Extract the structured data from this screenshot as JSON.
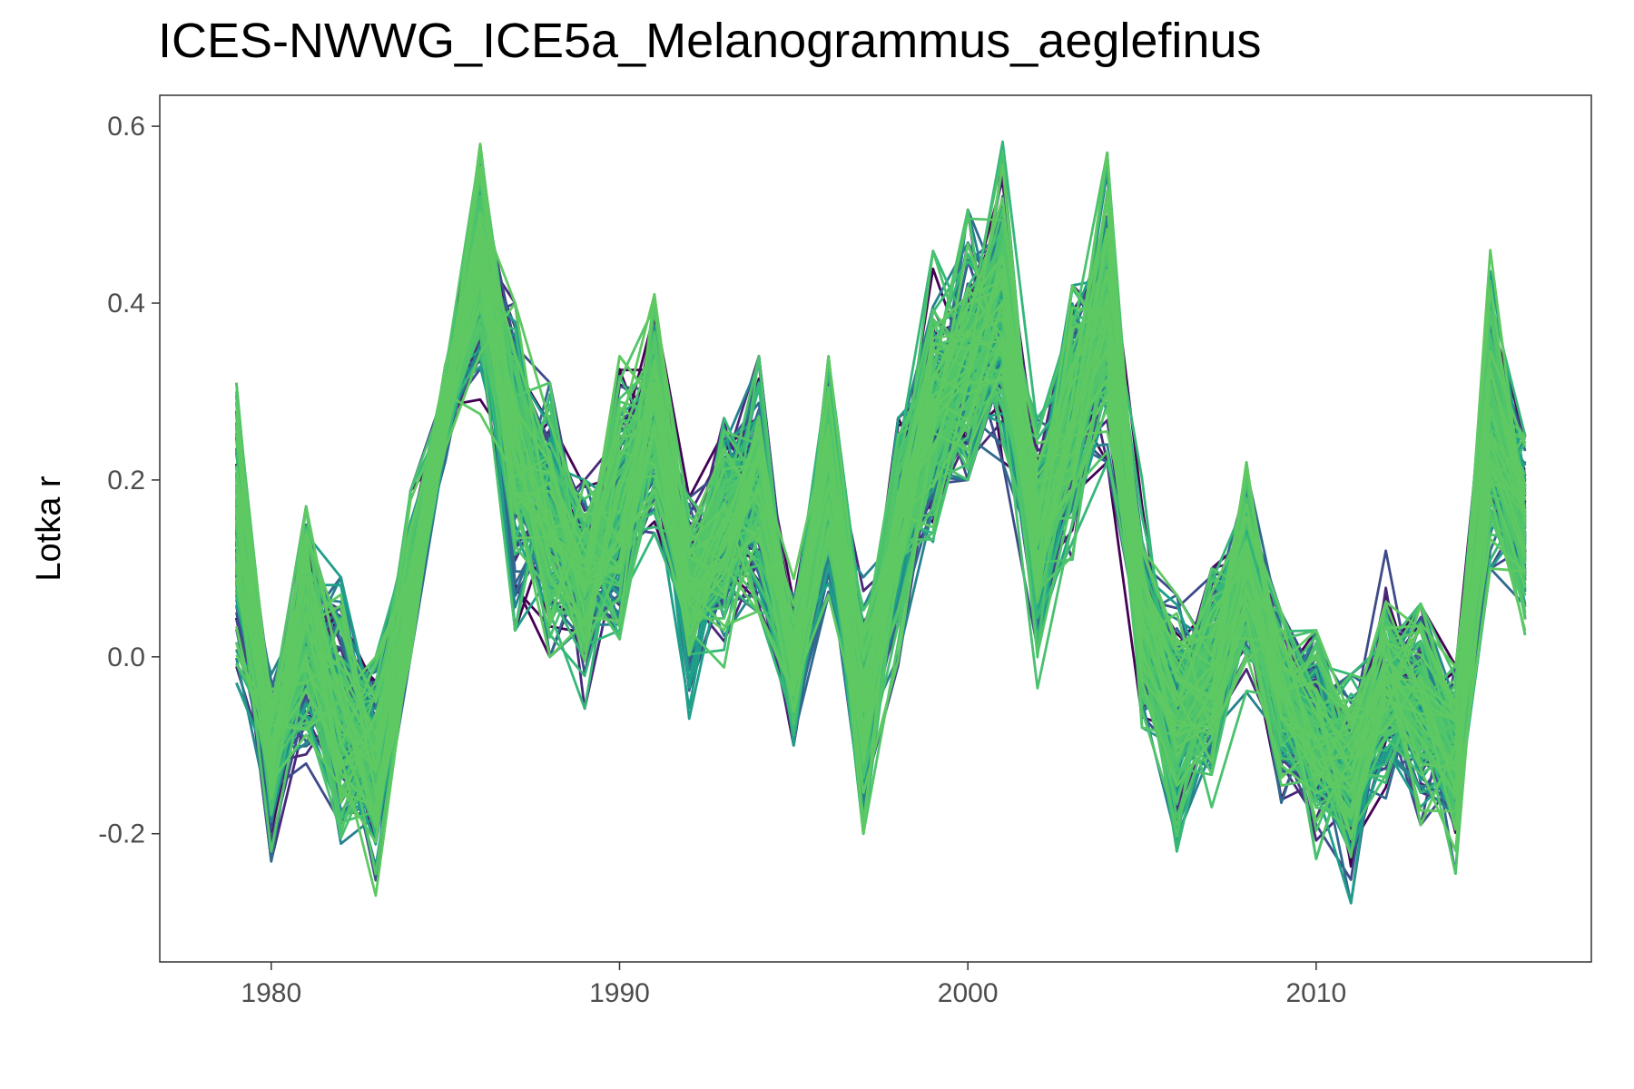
{
  "chart_data": {
    "type": "line",
    "title": "ICES-NWWG_ICE5a_Melanogrammus_aeglefinus",
    "xlabel": "",
    "ylabel": "Lotka r",
    "xlim": [
      1976.8,
      2017.9
    ],
    "ylim": [
      -0.345,
      0.635
    ],
    "x_ticks": [
      1980,
      1990,
      2000,
      2010
    ],
    "x_tick_labels": [
      "1980",
      "1990",
      "2000",
      "2010"
    ],
    "y_ticks": [
      -0.2,
      0.0,
      0.2,
      0.4,
      0.6
    ],
    "y_tick_labels": [
      "-0.2",
      "0.0",
      "0.2",
      "0.4",
      "0.6"
    ],
    "grid": false,
    "legend": "none",
    "series_count_estimate": 200,
    "color_scale": "viridis (dark purple to green)",
    "colors": [
      "#440154",
      "#482878",
      "#3e4a89",
      "#31688e",
      "#26828e",
      "#1f9e89",
      "#35b779",
      "#4ac16d",
      "#52c569",
      "#5ec962"
    ],
    "x": [
      1979,
      1980,
      1981,
      1982,
      1983,
      1984,
      1985,
      1986,
      1987,
      1988,
      1989,
      1990,
      1991,
      1992,
      1993,
      1994,
      1995,
      1996,
      1997,
      1998,
      1999,
      2000,
      2001,
      2002,
      2003,
      2004,
      2005,
      2006,
      2007,
      2008,
      2009,
      2010,
      2011,
      2012,
      2013,
      2014,
      2015,
      2016
    ],
    "central_trend": [
      0.15,
      -0.11,
      0.03,
      -0.06,
      -0.12,
      0.08,
      0.28,
      0.45,
      0.24,
      0.16,
      0.09,
      0.17,
      0.28,
      0.07,
      0.15,
      0.19,
      -0.02,
      0.21,
      -0.06,
      0.15,
      0.27,
      0.33,
      0.4,
      0.14,
      0.28,
      0.38,
      0.04,
      -0.06,
      -0.02,
      0.1,
      -0.04,
      -0.08,
      -0.13,
      -0.04,
      -0.05,
      -0.11,
      0.26,
      0.15
    ],
    "range_min": [
      -0.03,
      -0.3,
      -0.15,
      -0.24,
      -0.27,
      0.0,
      0.05,
      0.22,
      0.03,
      0.0,
      -0.16,
      0.02,
      0.14,
      -0.07,
      -0.03,
      0.05,
      -0.1,
      0.07,
      -0.2,
      -0.01,
      0.13,
      0.2,
      0.22,
      -0.05,
      0.11,
      0.22,
      -0.08,
      -0.22,
      -0.24,
      -0.04,
      -0.24,
      -0.26,
      -0.29,
      -0.16,
      -0.19,
      -0.27,
      0.1,
      -0.05
    ],
    "range_max": [
      0.31,
      -0.02,
      0.17,
      0.09,
      0.0,
      0.19,
      0.33,
      0.58,
      0.4,
      0.31,
      0.2,
      0.34,
      0.41,
      0.18,
      0.27,
      0.34,
      0.14,
      0.34,
      0.09,
      0.27,
      0.46,
      0.53,
      0.59,
      0.27,
      0.42,
      0.57,
      0.23,
      0.07,
      0.1,
      0.22,
      0.05,
      0.03,
      -0.02,
      0.12,
      0.06,
      -0.01,
      0.46,
      0.25
    ]
  }
}
